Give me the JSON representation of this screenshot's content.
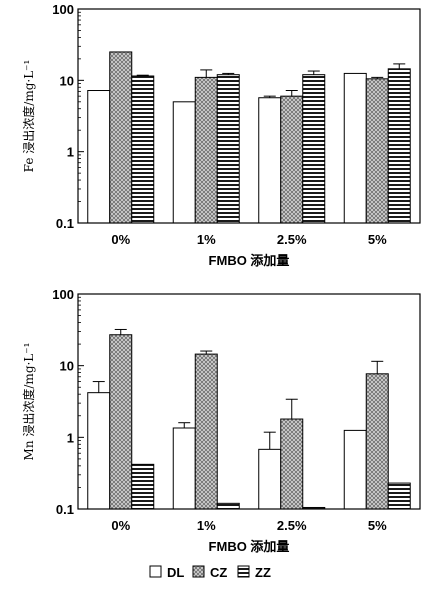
{
  "chart_data": [
    {
      "type": "bar",
      "title": "",
      "xlabel": "FMBO 添加量",
      "ylabel": "Fe 浸出浓度/mg·L⁻¹",
      "yscale": "log",
      "ylim": [
        0.1,
        100
      ],
      "yticks": [
        "0.1",
        "1",
        "10",
        "100"
      ],
      "categories": [
        "0%",
        "1%",
        "2.5%",
        "5%"
      ],
      "series": [
        {
          "name": "DL",
          "pattern": "blank",
          "values": [
            7.2,
            5.0,
            5.7,
            12.5
          ],
          "errors": [
            0,
            0,
            0.3,
            0
          ]
        },
        {
          "name": "CZ",
          "pattern": "crosshatch",
          "values": [
            25.0,
            11.0,
            6.0,
            10.5
          ],
          "errors": [
            0,
            3.0,
            1.2,
            0.5
          ]
        },
        {
          "name": "ZZ",
          "pattern": "hlines",
          "values": [
            11.5,
            12.0,
            12.0,
            14.5
          ],
          "errors": [
            0.3,
            0.5,
            1.5,
            2.5
          ]
        }
      ]
    },
    {
      "type": "bar",
      "title": "",
      "xlabel": "FMBO 添加量",
      "ylabel": "Mn 浸出浓度/mg·L⁻¹",
      "yscale": "log",
      "ylim": [
        0.1,
        100
      ],
      "yticks": [
        "0.1",
        "1",
        "10",
        "100"
      ],
      "categories": [
        "0%",
        "1%",
        "2.5%",
        "5%"
      ],
      "series": [
        {
          "name": "DL",
          "pattern": "blank",
          "values": [
            4.2,
            1.35,
            0.68,
            1.25
          ],
          "errors": [
            1.8,
            0.25,
            0.5,
            0
          ]
        },
        {
          "name": "CZ",
          "pattern": "crosshatch",
          "values": [
            27.0,
            14.5,
            1.8,
            7.7
          ],
          "errors": [
            5.0,
            1.5,
            1.6,
            3.8
          ]
        },
        {
          "name": "ZZ",
          "pattern": "hlines",
          "values": [
            0.42,
            0.12,
            0.105,
            0.23
          ],
          "errors": [
            0,
            0,
            0,
            0
          ]
        }
      ]
    }
  ],
  "legend": {
    "items": [
      {
        "label": "DL",
        "pattern": "blank"
      },
      {
        "label": "CZ",
        "pattern": "crosshatch"
      },
      {
        "label": "ZZ",
        "pattern": "hlines"
      }
    ]
  }
}
